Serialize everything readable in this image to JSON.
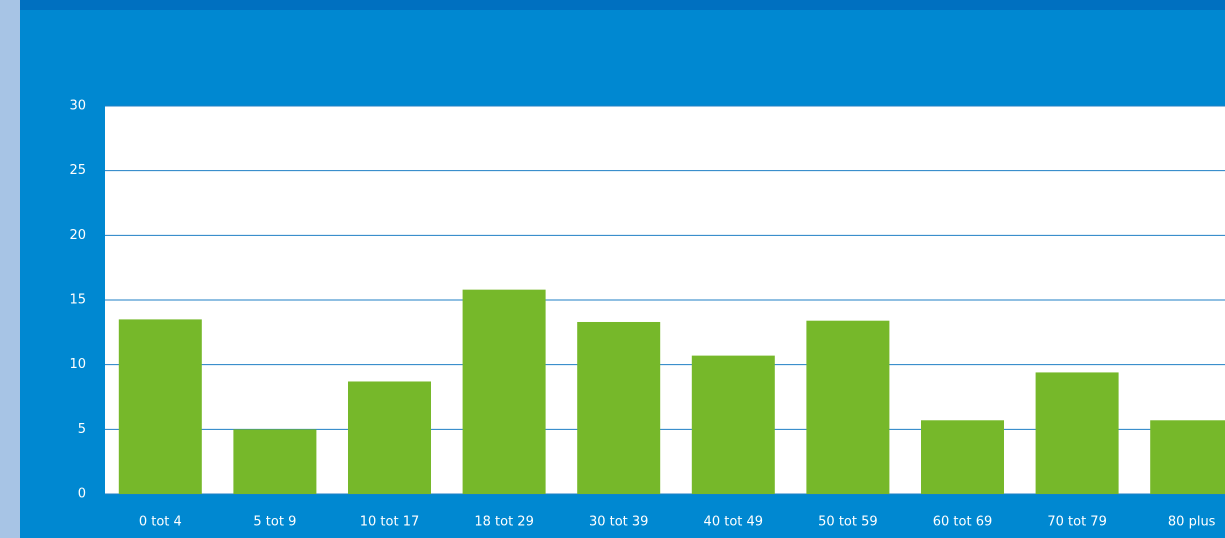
{
  "chart_data": {
    "type": "bar",
    "categories": [
      "0 tot 4",
      "5 tot 9",
      "10 tot 17",
      "18 tot 29",
      "30 tot 39",
      "40 tot 49",
      "50 tot 59",
      "60 tot 69",
      "70 tot 79",
      "80 plus"
    ],
    "values": [
      13.5,
      5,
      8.7,
      15.8,
      13.3,
      10.7,
      13.4,
      5.7,
      9.4,
      5.7
    ],
    "color": "#76b82a",
    "ylim": [
      0,
      30
    ],
    "yticks": [
      0,
      5,
      10,
      15,
      20,
      25,
      30
    ],
    "grid": true
  }
}
